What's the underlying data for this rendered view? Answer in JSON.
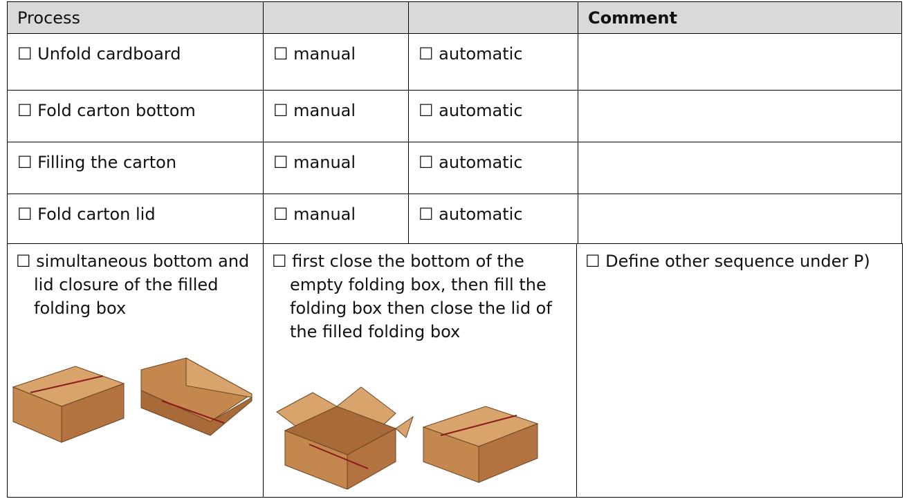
{
  "header": {
    "process": "Process",
    "comment": "Comment"
  },
  "rows": [
    {
      "step": "☐ Unfold cardboard",
      "manual": "☐ manual",
      "automatic": "☐ automatic"
    },
    {
      "step": "☐ Fold carton bottom",
      "manual": "☐ manual",
      "automatic": "☐ automatic"
    },
    {
      "step": "☐ Filling the carton",
      "manual": "☐ manual",
      "automatic": "☐ automatic"
    },
    {
      "step": "☐ Fold carton lid",
      "manual": "☐ manual",
      "automatic": "☐ automatic"
    }
  ],
  "sequences": [
    "☐ simultaneous bottom and lid closure of the filled folding box",
    "☐ first close the bottom of the empty folding box, then fill the folding box then close the lid of the filled folding box",
    "☐ Define other sequence under P)"
  ]
}
